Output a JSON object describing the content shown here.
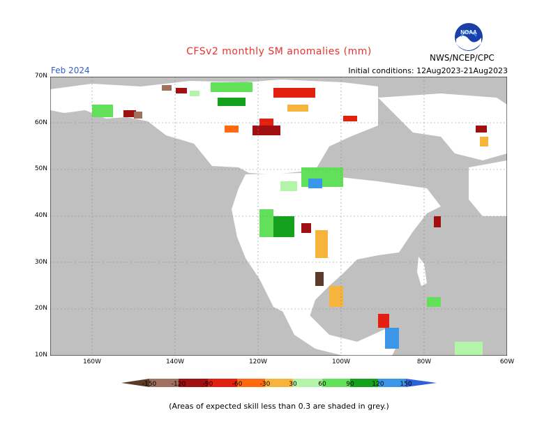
{
  "header": {
    "title": "CFSv2 monthly SM anomalies (mm)",
    "period": "Feb 2024",
    "initial_conditions": "Initial conditions: 12Aug2023-21Aug2023",
    "agency": "NWS/NCEP/CPC",
    "logo_text": "NOAA"
  },
  "axes": {
    "lat_labels": [
      "70N",
      "60N",
      "50N",
      "40N",
      "30N",
      "20N",
      "10N"
    ],
    "lon_labels": [
      "160W",
      "140W",
      "120W",
      "100W",
      "80W",
      "60W"
    ]
  },
  "legend": {
    "labels": [
      "-150",
      "-120",
      "-90",
      "-60",
      "-30",
      "30",
      "60",
      "90",
      "120",
      "150"
    ],
    "colors": {
      "below_-150": "#5a3a2a",
      "-150_-120": "#a07060",
      "-120_-90": "#a01010",
      "-90_-60": "#e22010",
      "-60_-30": "#ff6a10",
      "-30_0": "#f7b43c",
      "0_30": "#ffffff",
      "30_60": "#b4f4a8",
      "60_90": "#63e05a",
      "90_120": "#14a21c",
      "120_150": "#3c96e8",
      "above_150": "#2a60d8"
    },
    "grey_mask": "#c0c0c0"
  },
  "footnote": "(Areas of expected skill less than 0.3 are shaded in grey.)"
}
